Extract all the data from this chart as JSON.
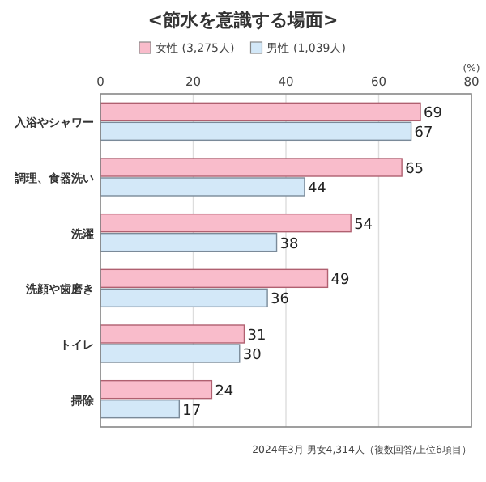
{
  "chart_data": {
    "type": "bar",
    "orientation": "horizontal",
    "title": "<節水を意識する場面>",
    "xlabel": "(%)",
    "categories": [
      "入浴やシャワー",
      "調理、食器洗い",
      "洗濯",
      "洗顔や歯磨き",
      "トイレ",
      "掃除"
    ],
    "series": [
      {
        "name": "女性 (3,275人)",
        "color": "#f9bccb",
        "values": [
          69,
          65,
          54,
          49,
          31,
          24
        ]
      },
      {
        "name": "男性 (1,039人)",
        "color": "#d3e8f8",
        "values": [
          67,
          44,
          38,
          36,
          30,
          17
        ]
      }
    ],
    "xlim": [
      0,
      80
    ],
    "xticks": [
      0,
      20,
      40,
      60,
      80
    ],
    "grid": "x",
    "legend": "top",
    "data_labels": true,
    "annotations": [
      "2024年3月 男女4,314人（複数回答/上位6項目）"
    ]
  }
}
